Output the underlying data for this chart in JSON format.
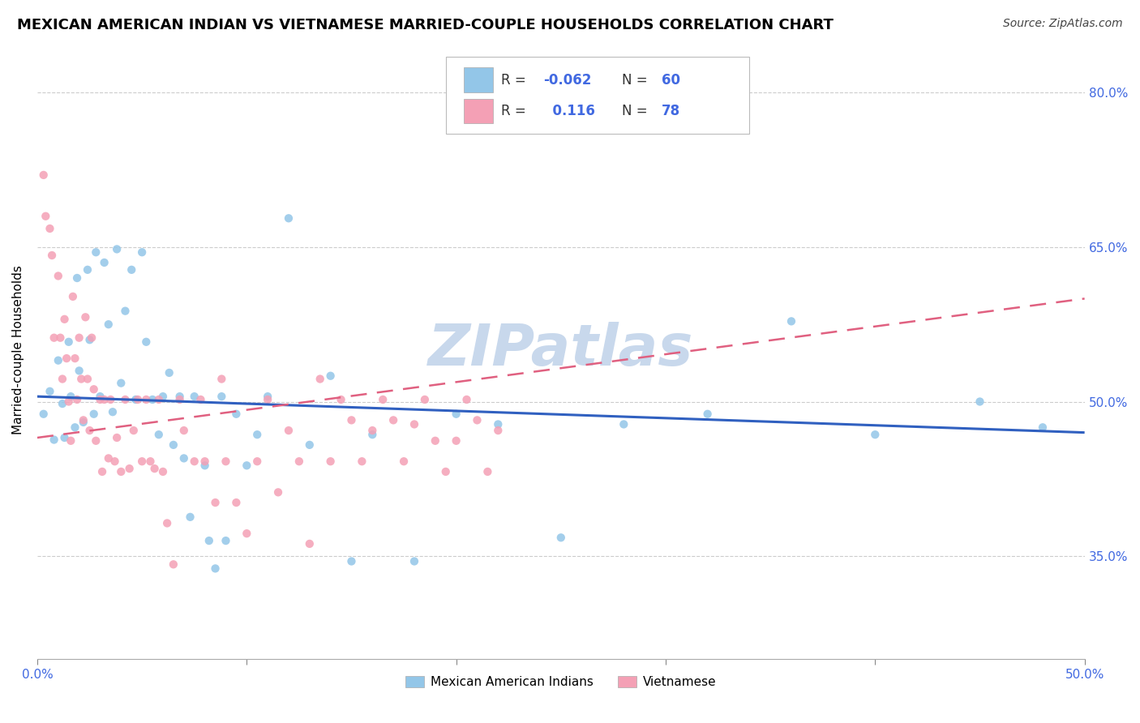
{
  "title": "MEXICAN AMERICAN INDIAN VS VIETNAMESE MARRIED-COUPLE HOUSEHOLDS CORRELATION CHART",
  "source": "Source: ZipAtlas.com",
  "ylabel": "Married-couple Households",
  "ytick_labels": [
    "35.0%",
    "50.0%",
    "65.0%",
    "80.0%"
  ],
  "ytick_values": [
    0.35,
    0.5,
    0.65,
    0.8
  ],
  "xlim": [
    0.0,
    0.5
  ],
  "ylim": [
    0.25,
    0.85
  ],
  "legend_labels": [
    "Mexican American Indians",
    "Vietnamese"
  ],
  "color_blue": "#93C6E8",
  "color_pink": "#F4A0B5",
  "line_blue": "#3060C0",
  "line_pink": "#E06080",
  "watermark": "ZIPatlas",
  "watermark_color": "#C8D8EC",
  "blue_x": [
    0.003,
    0.006,
    0.008,
    0.01,
    0.012,
    0.013,
    0.015,
    0.016,
    0.018,
    0.019,
    0.02,
    0.022,
    0.024,
    0.025,
    0.027,
    0.028,
    0.03,
    0.032,
    0.034,
    0.036,
    0.038,
    0.04,
    0.042,
    0.045,
    0.047,
    0.05,
    0.052,
    0.055,
    0.058,
    0.06,
    0.063,
    0.065,
    0.068,
    0.07,
    0.073,
    0.075,
    0.08,
    0.082,
    0.085,
    0.088,
    0.09,
    0.095,
    0.1,
    0.105,
    0.11,
    0.12,
    0.13,
    0.14,
    0.15,
    0.16,
    0.18,
    0.2,
    0.22,
    0.25,
    0.28,
    0.32,
    0.36,
    0.4,
    0.45,
    0.48
  ],
  "blue_y": [
    0.488,
    0.51,
    0.463,
    0.54,
    0.498,
    0.465,
    0.558,
    0.505,
    0.475,
    0.62,
    0.53,
    0.48,
    0.628,
    0.56,
    0.488,
    0.645,
    0.505,
    0.635,
    0.575,
    0.49,
    0.648,
    0.518,
    0.588,
    0.628,
    0.502,
    0.645,
    0.558,
    0.502,
    0.468,
    0.505,
    0.528,
    0.458,
    0.505,
    0.445,
    0.388,
    0.505,
    0.438,
    0.365,
    0.338,
    0.505,
    0.365,
    0.488,
    0.438,
    0.468,
    0.505,
    0.678,
    0.458,
    0.525,
    0.345,
    0.468,
    0.345,
    0.488,
    0.478,
    0.368,
    0.478,
    0.488,
    0.578,
    0.468,
    0.5,
    0.475
  ],
  "pink_x": [
    0.003,
    0.004,
    0.006,
    0.007,
    0.008,
    0.01,
    0.011,
    0.012,
    0.013,
    0.014,
    0.015,
    0.016,
    0.017,
    0.018,
    0.019,
    0.02,
    0.021,
    0.022,
    0.023,
    0.024,
    0.025,
    0.026,
    0.027,
    0.028,
    0.03,
    0.031,
    0.032,
    0.034,
    0.035,
    0.037,
    0.038,
    0.04,
    0.042,
    0.044,
    0.046,
    0.048,
    0.05,
    0.052,
    0.054,
    0.056,
    0.058,
    0.06,
    0.062,
    0.065,
    0.068,
    0.07,
    0.075,
    0.078,
    0.08,
    0.085,
    0.088,
    0.09,
    0.095,
    0.1,
    0.105,
    0.11,
    0.115,
    0.12,
    0.125,
    0.13,
    0.135,
    0.14,
    0.145,
    0.15,
    0.155,
    0.16,
    0.165,
    0.17,
    0.175,
    0.18,
    0.185,
    0.19,
    0.195,
    0.2,
    0.205,
    0.21,
    0.215,
    0.22
  ],
  "pink_y": [
    0.72,
    0.68,
    0.668,
    0.642,
    0.562,
    0.622,
    0.562,
    0.522,
    0.58,
    0.542,
    0.5,
    0.462,
    0.602,
    0.542,
    0.502,
    0.562,
    0.522,
    0.482,
    0.582,
    0.522,
    0.472,
    0.562,
    0.512,
    0.462,
    0.502,
    0.432,
    0.502,
    0.445,
    0.502,
    0.442,
    0.465,
    0.432,
    0.502,
    0.435,
    0.472,
    0.502,
    0.442,
    0.502,
    0.442,
    0.435,
    0.502,
    0.432,
    0.382,
    0.342,
    0.502,
    0.472,
    0.442,
    0.502,
    0.442,
    0.402,
    0.522,
    0.442,
    0.402,
    0.372,
    0.442,
    0.502,
    0.412,
    0.472,
    0.442,
    0.362,
    0.522,
    0.442,
    0.502,
    0.482,
    0.442,
    0.472,
    0.502,
    0.482,
    0.442,
    0.478,
    0.502,
    0.462,
    0.432,
    0.462,
    0.502,
    0.482,
    0.432,
    0.472
  ],
  "blue_trend_x": [
    0.0,
    0.5
  ],
  "blue_trend_y": [
    0.505,
    0.47
  ],
  "pink_trend_x": [
    0.0,
    0.5
  ],
  "pink_trend_y": [
    0.465,
    0.6
  ],
  "grid_color": "#CCCCCC",
  "title_fontsize": 13,
  "source_fontsize": 10,
  "axis_label_fontsize": 11,
  "tick_fontsize": 11,
  "marker_size": 55,
  "xtick_positions": [
    0.0,
    0.1,
    0.2,
    0.3,
    0.4,
    0.5
  ],
  "xtick_labels": [
    "0.0%",
    "",
    "",
    "",
    "",
    "50.0%"
  ]
}
